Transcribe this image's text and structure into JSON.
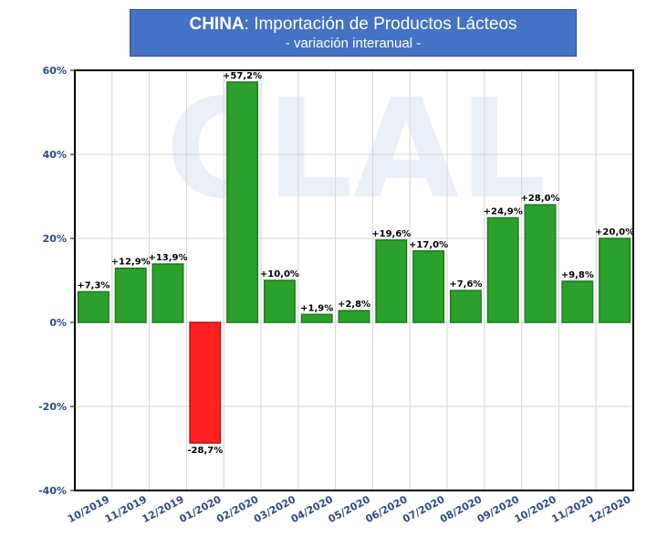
{
  "chart_data": {
    "type": "bar",
    "title_bold": "CHINA",
    "title_rest": ": Importación de Productos Lácteos",
    "subtitle": "- variación interanual -",
    "watermark": "CLAL",
    "categories": [
      "10/2019",
      "11/2019",
      "12/2019",
      "01/2020",
      "02/2020",
      "03/2020",
      "04/2020",
      "05/2020",
      "06/2020",
      "07/2020",
      "08/2020",
      "09/2020",
      "10/2020",
      "11/2020",
      "12/2020"
    ],
    "values": [
      7.3,
      12.9,
      13.9,
      -28.7,
      57.2,
      10.0,
      1.9,
      2.8,
      19.6,
      17.0,
      7.6,
      24.9,
      28.0,
      9.8,
      20.0
    ],
    "data_labels": [
      "+7,3%",
      "+12,9%",
      "+13,9%",
      "-28,7%",
      "+57,2%",
      "+10,0%",
      "+1,9%",
      "+2,8%",
      "+19,6%",
      "+17,0%",
      "+7,6%",
      "+24,9%",
      "+28,0%",
      "+9,8%",
      "+20,0%"
    ],
    "ylim": [
      -40,
      60
    ],
    "yticks": [
      60,
      40,
      20,
      0,
      -20,
      -40
    ],
    "ytick_labels": [
      "60%",
      "40%",
      "20%",
      "0%",
      "-20%",
      "-40%"
    ],
    "xlabel": "",
    "ylabel": "",
    "grid": true,
    "colors": {
      "positive": "#2ca02c",
      "positive_edge": "#1e7a1e",
      "negative": "#ff2020",
      "negative_edge": "#c01010",
      "axis_text": "#2e4a8a",
      "title_bg": "#4472c4"
    }
  }
}
